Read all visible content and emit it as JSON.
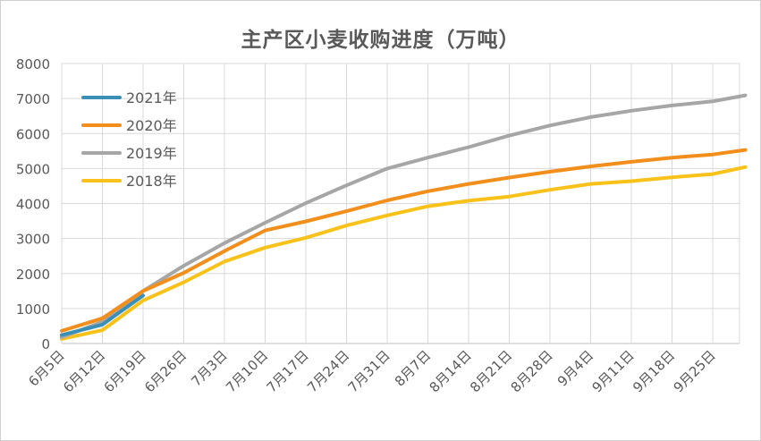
{
  "chart_data": {
    "type": "line",
    "title": "主产区小麦收购进度（万吨）",
    "xlabel": "",
    "ylabel": "",
    "ylim": [
      0,
      8000
    ],
    "yticks": [
      "0",
      "1000",
      "2000",
      "3000",
      "4000",
      "5000",
      "6000",
      "7000",
      "8000"
    ],
    "categories": [
      "6月5日",
      "6月12日",
      "6月19日",
      "6月26日",
      "7月3日",
      "7月10日",
      "7月17日",
      "7月24日",
      "7月31日",
      "8月7日",
      "8月14日",
      "8月21日",
      "8月28日",
      "9月4日",
      "9月11日",
      "9月18日",
      "9月25日"
    ],
    "grid": true,
    "legend_position": "top-left",
    "series": [
      {
        "name": "2021年",
        "color": "#3a8fb7",
        "x": [
          0,
          1,
          2
        ],
        "values": [
          240,
          540,
          1370
        ]
      },
      {
        "name": "2020年",
        "color": "#f28e1c",
        "x": [
          0,
          1,
          2,
          3,
          4,
          5,
          6,
          7,
          8,
          9,
          10,
          11,
          12,
          13,
          14,
          15,
          16,
          16.8
        ],
        "values": [
          360,
          720,
          1500,
          2020,
          2640,
          3230,
          3490,
          3780,
          4090,
          4350,
          4560,
          4740,
          4910,
          5060,
          5190,
          5310,
          5400,
          5530
        ]
      },
      {
        "name": "2019年",
        "color": "#a6a6a6",
        "x": [
          0,
          1,
          2,
          3,
          4,
          5,
          6,
          7,
          8,
          9,
          10,
          11,
          12,
          13,
          14,
          15,
          16,
          16.8
        ],
        "values": [
          180,
          620,
          1500,
          2220,
          2870,
          3450,
          4010,
          4520,
          5000,
          5310,
          5610,
          5940,
          6230,
          6470,
          6650,
          6800,
          6920,
          7090
        ]
      },
      {
        "name": "2018年",
        "color": "#f9c21a",
        "x": [
          0,
          1,
          2,
          3,
          4,
          5,
          6,
          7,
          8,
          9,
          10,
          11,
          12,
          13,
          14,
          15,
          16,
          16.8
        ],
        "values": [
          130,
          380,
          1230,
          1750,
          2340,
          2740,
          3020,
          3370,
          3660,
          3920,
          4080,
          4200,
          4390,
          4560,
          4640,
          4750,
          4840,
          5040
        ]
      }
    ]
  }
}
